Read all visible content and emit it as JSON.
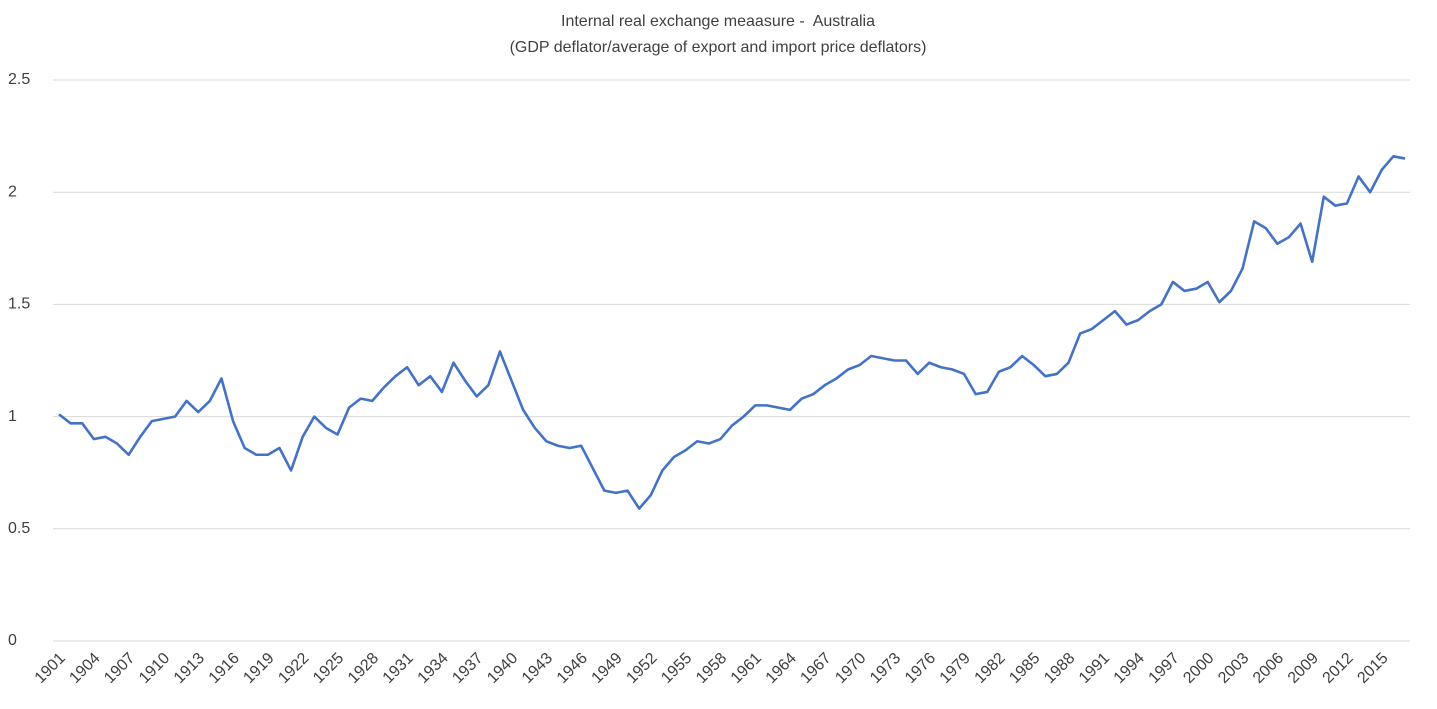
{
  "chart_data": {
    "type": "line",
    "title": "Internal real exchange meaasure -  Australia",
    "subtitle": "(GDP deflator/average of export and import price deflators)",
    "categories": [
      "1901",
      null,
      null,
      "1904",
      null,
      null,
      "1907",
      null,
      null,
      "1910",
      null,
      null,
      "1913",
      null,
      null,
      "1916",
      null,
      null,
      "1919",
      null,
      null,
      "1922",
      null,
      null,
      "1925",
      null,
      null,
      "1928",
      null,
      null,
      "1931",
      null,
      null,
      "1934",
      null,
      null,
      "1937",
      null,
      null,
      "1940",
      null,
      null,
      "1943",
      null,
      null,
      "1946",
      null,
      null,
      "1949",
      null,
      null,
      "1952",
      null,
      null,
      "1955",
      null,
      null,
      "1958",
      null,
      null,
      "1961",
      null,
      null,
      "1964",
      null,
      null,
      "1967",
      null,
      null,
      "1970",
      null,
      null,
      "1973",
      null,
      null,
      "1976",
      null,
      null,
      "1979",
      null,
      null,
      "1982",
      null,
      null,
      "1985",
      null,
      null,
      "1988",
      null,
      null,
      "1991",
      null,
      null,
      "1994",
      null,
      null,
      "1997",
      null,
      null,
      "2000",
      null,
      null,
      "2003",
      null,
      null,
      "2006",
      null,
      null,
      "2009",
      null,
      null,
      "2012",
      null,
      null,
      "2015",
      null,
      null
    ],
    "series": [
      {
        "color": "#4472c4",
        "values": [
          1.01,
          0.97,
          0.97,
          0.9,
          0.91,
          0.88,
          0.83,
          0.91,
          0.98,
          0.99,
          1.0,
          1.07,
          1.02,
          1.07,
          1.17,
          0.98,
          0.86,
          0.83,
          0.83,
          0.86,
          0.76,
          0.91,
          1.0,
          0.95,
          0.92,
          1.04,
          1.08,
          1.07,
          1.13,
          1.18,
          1.22,
          1.14,
          1.18,
          1.11,
          1.24,
          1.16,
          1.09,
          1.14,
          1.29,
          1.16,
          1.03,
          0.95,
          0.89,
          0.87,
          0.86,
          0.87,
          0.77,
          0.67,
          0.66,
          0.67,
          0.59,
          0.65,
          0.76,
          0.82,
          0.85,
          0.89,
          0.88,
          0.9,
          0.96,
          1.0,
          1.05,
          1.05,
          1.04,
          1.03,
          1.08,
          1.1,
          1.14,
          1.17,
          1.21,
          1.23,
          1.27,
          1.26,
          1.25,
          1.25,
          1.19,
          1.24,
          1.22,
          1.21,
          1.19,
          1.1,
          1.11,
          1.2,
          1.22,
          1.27,
          1.23,
          1.18,
          1.19,
          1.24,
          1.37,
          1.39,
          1.43,
          1.47,
          1.41,
          1.43,
          1.47,
          1.5,
          1.6,
          1.56,
          1.57,
          1.6,
          1.51,
          1.56,
          1.66,
          1.87,
          1.84,
          1.77,
          1.8,
          1.86,
          1.69,
          1.98,
          1.94,
          1.95,
          2.07,
          2.0,
          2.1,
          2.16,
          2.15
        ]
      }
    ],
    "ylim": [
      0,
      2.5
    ],
    "yticks": [
      0,
      0.5,
      1,
      1.5,
      2,
      2.5
    ],
    "grid": true
  }
}
